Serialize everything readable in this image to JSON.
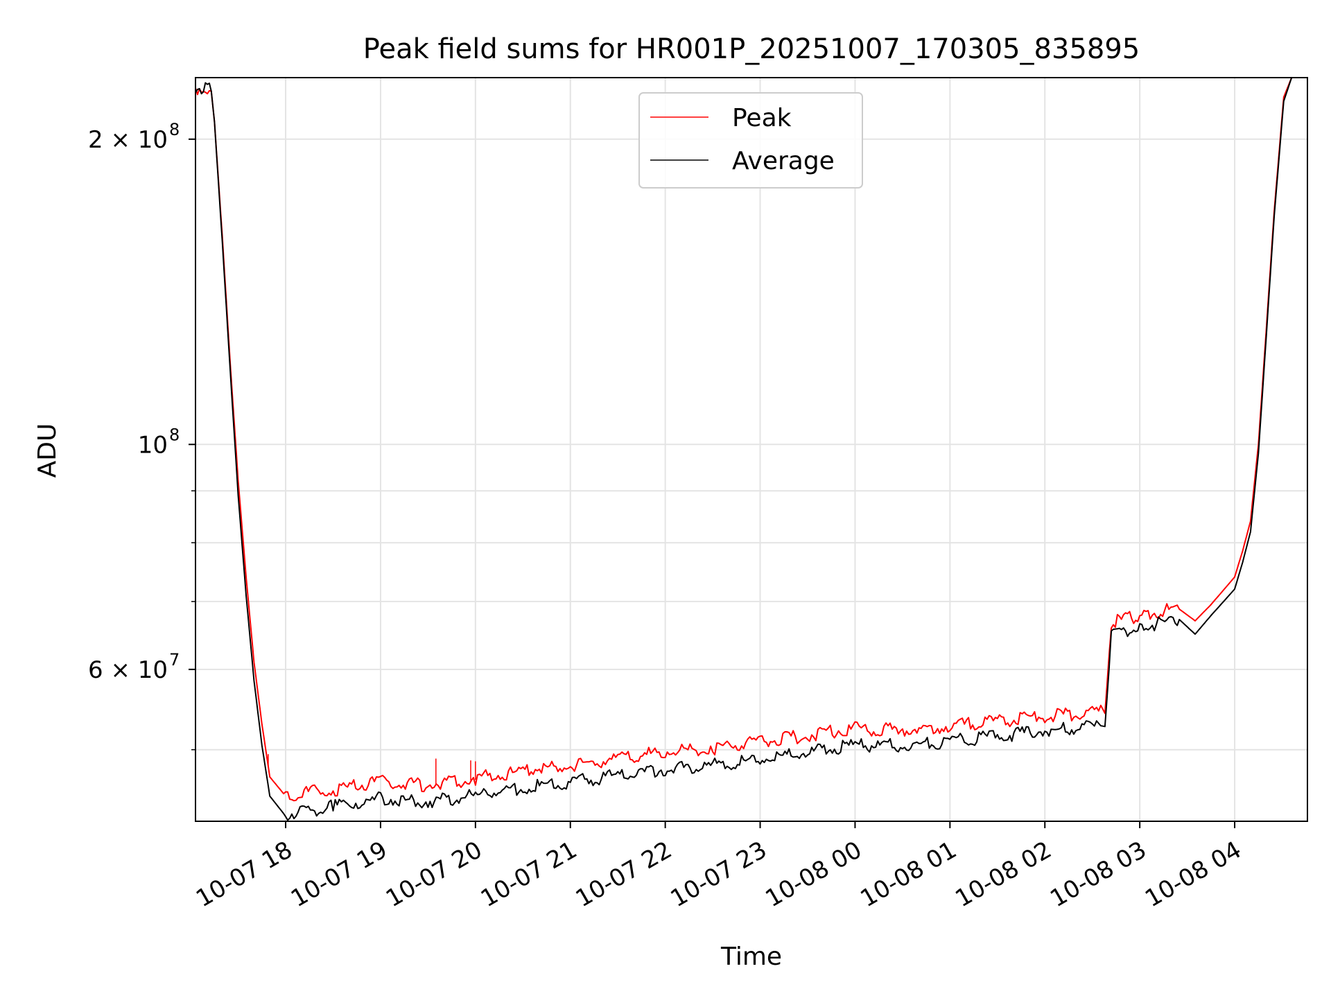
{
  "chart_data": {
    "type": "line",
    "title": "Peak field sums for HR001P_20251007_170305_835895",
    "xlabel": "Time",
    "ylabel": "ADU",
    "y_scale": "log",
    "ylim": [
      42500000,
      230000000
    ],
    "xlim": [
      "2025-10-07 17:03",
      "2025-10-08 04:46"
    ],
    "grid": true,
    "legend_position": "upper center",
    "x_ticks": [
      {
        "t": "2025-10-07 18:00",
        "label": "10-07 18"
      },
      {
        "t": "2025-10-07 19:00",
        "label": "10-07 19"
      },
      {
        "t": "2025-10-07 20:00",
        "label": "10-07 20"
      },
      {
        "t": "2025-10-07 21:00",
        "label": "10-07 21"
      },
      {
        "t": "2025-10-07 22:00",
        "label": "10-07 22"
      },
      {
        "t": "2025-10-07 23:00",
        "label": "10-07 23"
      },
      {
        "t": "2025-10-08 00:00",
        "label": "10-08 00"
      },
      {
        "t": "2025-10-08 01:00",
        "label": "10-08 01"
      },
      {
        "t": "2025-10-08 02:00",
        "label": "10-08 02"
      },
      {
        "t": "2025-10-08 03:00",
        "label": "10-08 03"
      },
      {
        "t": "2025-10-08 04:00",
        "label": "10-08 04"
      }
    ],
    "y_major_ticks": [
      {
        "value": 60000000,
        "label": "6 × 10",
        "exp": "7"
      },
      {
        "value": 100000000,
        "label": "10",
        "exp": "8"
      },
      {
        "value": 200000000,
        "label": "2 × 10",
        "exp": "8"
      }
    ],
    "y_minor_ticks": [
      50000000,
      70000000,
      80000000,
      90000000
    ],
    "series": [
      {
        "name": "Peak",
        "color": "#ff0000",
        "points": [
          [
            "2025-10-07 17:03",
            224000000
          ],
          [
            "2025-10-07 17:13",
            223000000
          ],
          [
            "2025-10-07 17:15",
            208000000
          ],
          [
            "2025-10-07 17:20",
            160000000
          ],
          [
            "2025-10-07 17:25",
            120000000
          ],
          [
            "2025-10-07 17:30",
            92000000
          ],
          [
            "2025-10-07 17:35",
            74000000
          ],
          [
            "2025-10-07 17:40",
            61000000
          ],
          [
            "2025-10-07 17:45",
            53000000
          ],
          [
            "2025-10-07 17:50",
            47000000
          ],
          [
            "2025-10-07 18:00",
            45000000
          ],
          [
            "2025-10-07 18:30",
            45500000
          ],
          [
            "2025-10-07 19:00",
            46300000
          ],
          [
            "2025-10-07 19:30",
            46000000
          ],
          [
            "2025-10-07 20:00",
            46700000
          ],
          [
            "2025-10-07 20:30",
            47500000
          ],
          [
            "2025-10-07 21:00",
            48100000
          ],
          [
            "2025-10-07 21:30",
            48800000
          ],
          [
            "2025-10-07 22:00",
            49600000
          ],
          [
            "2025-10-07 22:30",
            50000000
          ],
          [
            "2025-10-07 23:00",
            50700000
          ],
          [
            "2025-10-07 23:30",
            51500000
          ],
          [
            "2025-10-08 00:00",
            52300000
          ],
          [
            "2025-10-08 00:30",
            52100000
          ],
          [
            "2025-10-08 01:00",
            52600000
          ],
          [
            "2025-10-08 01:30",
            53200000
          ],
          [
            "2025-10-08 02:00",
            53800000
          ],
          [
            "2025-10-08 02:30",
            54200000
          ],
          [
            "2025-10-08 02:38",
            54300000
          ],
          [
            "2025-10-08 02:42",
            66500000
          ],
          [
            "2025-10-08 03:00",
            67500000
          ],
          [
            "2025-10-08 03:25",
            68800000
          ],
          [
            "2025-10-08 03:35",
            67000000
          ],
          [
            "2025-10-08 03:45",
            69500000
          ],
          [
            "2025-10-08 04:00",
            74000000
          ],
          [
            "2025-10-08 04:05",
            78500000
          ],
          [
            "2025-10-08 04:10",
            84000000
          ],
          [
            "2025-10-08 04:15",
            100000000
          ],
          [
            "2025-10-08 04:20",
            130000000
          ],
          [
            "2025-10-08 04:25",
            170000000
          ],
          [
            "2025-10-08 04:31",
            220000000
          ],
          [
            "2025-10-08 04:36",
            230000000
          ]
        ]
      },
      {
        "name": "Average",
        "color": "#000000",
        "points": [
          [
            "2025-10-07 17:03",
            224000000
          ],
          [
            "2025-10-07 17:13",
            223000000
          ],
          [
            "2025-10-07 17:15",
            208000000
          ],
          [
            "2025-10-07 17:20",
            158000000
          ],
          [
            "2025-10-07 17:25",
            118000000
          ],
          [
            "2025-10-07 17:30",
            89000000
          ],
          [
            "2025-10-07 17:35",
            71000000
          ],
          [
            "2025-10-07 17:40",
            58500000
          ],
          [
            "2025-10-07 17:45",
            50500000
          ],
          [
            "2025-10-07 17:50",
            45000000
          ],
          [
            "2025-10-07 18:00",
            43000000
          ],
          [
            "2025-10-07 18:30",
            43800000
          ],
          [
            "2025-10-07 19:00",
            44600000
          ],
          [
            "2025-10-07 19:30",
            44300000
          ],
          [
            "2025-10-07 20:00",
            44900000
          ],
          [
            "2025-10-07 20:30",
            45700000
          ],
          [
            "2025-10-07 21:00",
            46300000
          ],
          [
            "2025-10-07 21:30",
            47000000
          ],
          [
            "2025-10-07 22:00",
            47700000
          ],
          [
            "2025-10-07 22:30",
            48100000
          ],
          [
            "2025-10-07 23:00",
            48800000
          ],
          [
            "2025-10-07 23:30",
            49600000
          ],
          [
            "2025-10-08 00:00",
            50300000
          ],
          [
            "2025-10-08 00:30",
            50300000
          ],
          [
            "2025-10-08 01:00",
            50800000
          ],
          [
            "2025-10-08 01:30",
            51400000
          ],
          [
            "2025-10-08 02:00",
            52000000
          ],
          [
            "2025-10-08 02:30",
            52500000
          ],
          [
            "2025-10-08 02:38",
            52700000
          ],
          [
            "2025-10-08 02:42",
            64500000
          ],
          [
            "2025-10-08 03:00",
            65700000
          ],
          [
            "2025-10-08 03:25",
            67200000
          ],
          [
            "2025-10-08 03:35",
            65000000
          ],
          [
            "2025-10-08 03:45",
            67800000
          ],
          [
            "2025-10-08 04:00",
            72000000
          ],
          [
            "2025-10-08 04:05",
            76500000
          ],
          [
            "2025-10-08 04:10",
            82000000
          ],
          [
            "2025-10-08 04:15",
            98000000
          ],
          [
            "2025-10-08 04:20",
            128000000
          ],
          [
            "2025-10-08 04:25",
            168000000
          ],
          [
            "2025-10-08 04:31",
            218000000
          ],
          [
            "2025-10-08 04:36",
            230000000
          ]
        ]
      }
    ],
    "outlier_spikes": [
      {
        "t": "2025-10-07 17:49",
        "value": 49500000
      },
      {
        "t": "2025-10-07 19:35",
        "value": 49000000
      },
      {
        "t": "2025-10-07 19:57",
        "value": 48800000
      },
      {
        "t": "2025-10-07 20:00",
        "value": 48700000
      }
    ]
  }
}
